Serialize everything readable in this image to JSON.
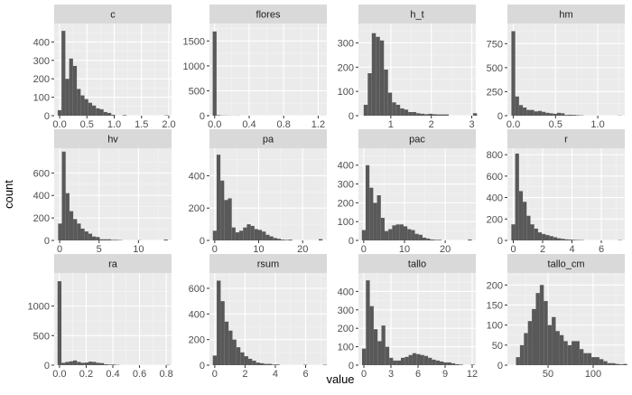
{
  "figure": {
    "ylabel": "count",
    "xlabel": "value"
  },
  "colors": {
    "panel_bg": "#ebebeb",
    "grid_major": "#ffffff",
    "grid_minor": "#f5f5f5",
    "strip_bg": "#d9d9d9",
    "bar": "#595959",
    "tick_text": "#4d4d4d",
    "title_text": "#1a1a1a"
  },
  "chart_data": [
    {
      "type": "bar",
      "title": "c",
      "xlim": [
        -0.1,
        2.05
      ],
      "xticks": [
        0,
        0.5,
        1,
        1.5,
        2
      ],
      "xtick_labels": [
        "0.0",
        "0.5",
        "1.0",
        "1.5",
        "2.0"
      ],
      "ylim": [
        0,
        500
      ],
      "yticks": [
        0,
        100,
        200,
        300,
        400
      ],
      "ytick_labels": [
        "0",
        "100",
        "200",
        "300",
        "400"
      ],
      "bin_start": -0.035,
      "bin_width": 0.07,
      "counts": [
        30,
        460,
        200,
        310,
        270,
        145,
        110,
        90,
        70,
        55,
        40,
        35,
        20,
        15,
        5,
        0,
        0,
        3,
        0,
        0,
        0,
        0,
        0,
        0,
        0,
        0,
        0,
        0,
        2
      ]
    },
    {
      "type": "bar",
      "title": "flores",
      "xlim": [
        -0.06,
        1.3
      ],
      "xticks": [
        0,
        0.4,
        0.8,
        1.2
      ],
      "xtick_labels": [
        "0.0",
        "0.4",
        "0.8",
        "1.2"
      ],
      "ylim": [
        0,
        1850
      ],
      "yticks": [
        0,
        500,
        1000,
        1500
      ],
      "ytick_labels": [
        "0",
        "500",
        "1000",
        "1500"
      ],
      "bin_start": -0.0225,
      "bin_width": 0.045,
      "counts": [
        1690,
        10,
        4,
        3,
        2,
        1,
        2,
        0,
        0,
        0,
        0,
        0,
        0,
        0,
        0,
        0,
        0,
        0,
        0,
        0,
        0,
        0,
        0,
        0,
        0,
        0,
        0,
        0,
        1
      ]
    },
    {
      "type": "bar",
      "title": "h_t",
      "xlim": [
        0.2,
        3.1
      ],
      "xticks": [
        1,
        2,
        3
      ],
      "xtick_labels": [
        "1",
        "2",
        "3"
      ],
      "ylim": [
        0,
        380
      ],
      "yticks": [
        0,
        100,
        200,
        300
      ],
      "ytick_labels": [
        "0",
        "100",
        "200",
        "300"
      ],
      "bin_start": 0.33,
      "bin_width": 0.1,
      "counts": [
        45,
        175,
        340,
        325,
        310,
        190,
        95,
        55,
        45,
        30,
        25,
        15,
        15,
        10,
        8,
        6,
        8,
        6,
        5,
        5,
        5,
        0,
        0,
        0,
        0,
        0,
        0,
        10
      ]
    },
    {
      "type": "bar",
      "title": "hm",
      "xlim": [
        -0.07,
        1.32
      ],
      "xticks": [
        0,
        0.5,
        1
      ],
      "xtick_labels": [
        "0.0",
        "0.5",
        "1.0"
      ],
      "ylim": [
        0,
        960
      ],
      "yticks": [
        0,
        250,
        500,
        750
      ],
      "ytick_labels": [
        "0",
        "250",
        "500",
        "750"
      ],
      "bin_start": -0.0225,
      "bin_width": 0.045,
      "counts": [
        880,
        200,
        110,
        85,
        60,
        60,
        45,
        50,
        40,
        30,
        25,
        20,
        30,
        25,
        8,
        10,
        8,
        5,
        3,
        0,
        0,
        0,
        0,
        0,
        0,
        0,
        0,
        0,
        2
      ]
    },
    {
      "type": "bar",
      "title": "hv",
      "xlim": [
        -0.7,
        14.2
      ],
      "xticks": [
        0,
        5,
        10
      ],
      "xtick_labels": [
        "0",
        "5",
        "10"
      ],
      "ylim": [
        0,
        820
      ],
      "yticks": [
        0,
        200,
        400,
        600
      ],
      "ytick_labels": [
        "0",
        "200",
        "400",
        "600"
      ],
      "bin_start": -0.2,
      "bin_width": 0.48,
      "counts": [
        150,
        790,
        420,
        260,
        190,
        150,
        105,
        80,
        60,
        35,
        30,
        10,
        10,
        10,
        5,
        5,
        3,
        0,
        0,
        0,
        0,
        2,
        0,
        0,
        0,
        0,
        0,
        0,
        8
      ]
    },
    {
      "type": "bar",
      "title": "pa",
      "xlim": [
        -1.2,
        25.5
      ],
      "xticks": [
        0,
        10,
        20
      ],
      "xtick_labels": [
        "0",
        "10",
        "20"
      ],
      "ylim": [
        0,
        570
      ],
      "yticks": [
        0,
        200,
        400
      ],
      "ytick_labels": [
        "0",
        "200",
        "400"
      ],
      "bin_start": -0.43,
      "bin_width": 0.86,
      "counts": [
        60,
        530,
        370,
        250,
        260,
        80,
        50,
        60,
        80,
        100,
        90,
        70,
        65,
        55,
        35,
        25,
        15,
        10,
        5,
        3,
        5,
        0,
        0,
        0,
        0,
        0,
        0,
        0,
        8
      ]
    },
    {
      "type": "bar",
      "title": "pac",
      "xlim": [
        -1.3,
        27.5
      ],
      "xticks": [
        0,
        10,
        20
      ],
      "xtick_labels": [
        "0",
        "10",
        "20"
      ],
      "ylim": [
        0,
        490
      ],
      "yticks": [
        0,
        100,
        200,
        300,
        400
      ],
      "ytick_labels": [
        "0",
        "100",
        "200",
        "300",
        "400"
      ],
      "bin_start": -0.46,
      "bin_width": 0.93,
      "counts": [
        55,
        400,
        280,
        200,
        240,
        120,
        50,
        60,
        80,
        85,
        85,
        75,
        60,
        55,
        35,
        30,
        15,
        10,
        5,
        3,
        3,
        0,
        0,
        0,
        0,
        0,
        0,
        0,
        5
      ]
    },
    {
      "type": "bar",
      "title": "r",
      "xlim": [
        -0.4,
        7.6
      ],
      "xticks": [
        0,
        2,
        4,
        6
      ],
      "xtick_labels": [
        "0",
        "2",
        "4",
        "6"
      ],
      "ylim": [
        0,
        860
      ],
      "yticks": [
        0,
        200,
        400,
        600,
        800
      ],
      "ytick_labels": [
        "0",
        "200",
        "400",
        "600",
        "800"
      ],
      "bin_start": -0.13,
      "bin_width": 0.26,
      "counts": [
        150,
        810,
        460,
        360,
        230,
        150,
        110,
        75,
        60,
        50,
        40,
        30,
        20,
        15,
        10,
        8,
        5,
        4,
        3,
        0,
        0,
        0,
        0,
        0,
        0,
        0,
        0,
        0,
        3
      ]
    },
    {
      "type": "bar",
      "title": "ra",
      "xlim": [
        -0.04,
        0.84
      ],
      "xticks": [
        0,
        0.2,
        0.4,
        0.6,
        0.8
      ],
      "xtick_labels": [
        "0.0",
        "0.2",
        "0.4",
        "0.6",
        "0.8"
      ],
      "ylim": [
        0,
        1560
      ],
      "yticks": [
        0,
        500,
        1000
      ],
      "ytick_labels": [
        "0",
        "500",
        "1000"
      ],
      "bin_start": -0.0145,
      "bin_width": 0.029,
      "counts": [
        1420,
        40,
        55,
        65,
        80,
        55,
        40,
        45,
        60,
        55,
        40,
        35,
        15,
        10,
        10,
        5,
        0,
        0,
        0,
        0,
        0,
        0,
        0,
        0,
        0,
        0,
        0,
        0,
        5
      ]
    },
    {
      "type": "bar",
      "title": "rsum",
      "xlim": [
        -0.35,
        7.4
      ],
      "xticks": [
        0,
        2,
        4,
        6
      ],
      "xtick_labels": [
        "0",
        "2",
        "4",
        "6"
      ],
      "ylim": [
        0,
        720
      ],
      "yticks": [
        0,
        200,
        400,
        600
      ],
      "ytick_labels": [
        "0",
        "200",
        "400",
        "600"
      ],
      "bin_start": -0.13,
      "bin_width": 0.26,
      "counts": [
        75,
        660,
        500,
        340,
        270,
        200,
        140,
        100,
        70,
        50,
        35,
        20,
        15,
        10,
        10,
        5,
        5,
        0,
        0,
        0,
        0,
        0,
        0,
        3,
        0,
        0,
        0,
        0,
        3
      ]
    },
    {
      "type": "bar",
      "title": "tallo",
      "xlim": [
        -0.6,
        12.4
      ],
      "xticks": [
        0,
        3,
        6,
        9,
        12
      ],
      "xtick_labels": [
        "0",
        "3",
        "6",
        "9",
        "12"
      ],
      "ylim": [
        0,
        500
      ],
      "yticks": [
        0,
        100,
        200,
        300,
        400
      ],
      "ytick_labels": [
        "0",
        "100",
        "200",
        "300",
        "400"
      ],
      "bin_start": -0.2,
      "bin_width": 0.43,
      "counts": [
        90,
        460,
        320,
        195,
        130,
        215,
        100,
        40,
        25,
        25,
        40,
        45,
        55,
        65,
        60,
        55,
        50,
        40,
        30,
        25,
        20,
        15,
        15,
        10,
        5,
        3,
        0,
        0,
        3
      ]
    },
    {
      "type": "bar",
      "title": "tallo_cm",
      "xlim": [
        5,
        135
      ],
      "xticks": [
        50,
        100
      ],
      "xtick_labels": [
        "50",
        "100"
      ],
      "ylim": [
        0,
        230
      ],
      "yticks": [
        0,
        50,
        100,
        150,
        200
      ],
      "ytick_labels": [
        "0",
        "50",
        "100",
        "150",
        "200"
      ],
      "bin_start": 14.5,
      "bin_width": 4.4,
      "counts": [
        20,
        50,
        80,
        110,
        140,
        180,
        200,
        160,
        100,
        120,
        85,
        75,
        60,
        50,
        60,
        60,
        40,
        30,
        30,
        20,
        20,
        15,
        10,
        5,
        5,
        3,
        2,
        3
      ]
    }
  ]
}
